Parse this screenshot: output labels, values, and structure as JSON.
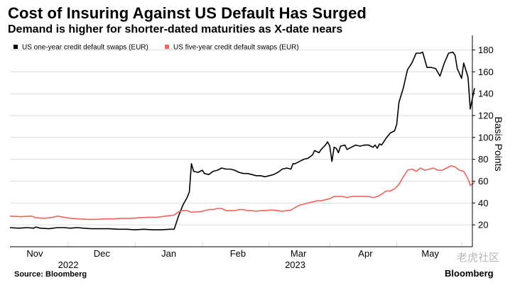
{
  "header": {
    "title": "Cost of Insuring Against US Default Has Surged",
    "subtitle": "Demand is higher for shorter-dated maturities as X-date nears"
  },
  "footer": {
    "source": "Source: Bloomberg",
    "brand": "Bloomberg",
    "watermark": "老虎社区"
  },
  "colors": {
    "series_one_year": "#000000",
    "series_five_year": "#f0645a",
    "grid": "#dcdcdc",
    "axis": "#000000"
  },
  "chart_data": {
    "type": "line",
    "title": "Cost of Insuring Against US Default Has Surged",
    "subtitle": "Demand is higher for shorter-dated maturities as X-date nears",
    "ylabel": "Basis Points",
    "xlabel": "",
    "ylim": [
      0,
      190
    ],
    "yticks": [
      20,
      40,
      60,
      80,
      100,
      120,
      140,
      160,
      180
    ],
    "y_axis_side": "right",
    "grid": true,
    "legend": "top-left",
    "x_domain_days": [
      0,
      214
    ],
    "x_axis_origin": "2022-10-20",
    "month_ticks": [
      {
        "label": "Nov",
        "day": 11.5
      },
      {
        "label": "Dec",
        "day": 42.5
      },
      {
        "label": "Jan",
        "day": 73.5
      },
      {
        "label": "Feb",
        "day": 105.5
      },
      {
        "label": "Mar",
        "day": 133.5
      },
      {
        "label": "Apr",
        "day": 164.5
      },
      {
        "label": "May",
        "day": 194.5
      }
    ],
    "month_separators_day": [
      27,
      58,
      89,
      120,
      148,
      179,
      209
    ],
    "year_labels": [
      {
        "label": "2022",
        "day": 27
      },
      {
        "label": "2023",
        "day": 132
      }
    ],
    "series": [
      {
        "name": "US one-year credit default swaps (EUR)",
        "color": "#000000",
        "points": [
          [
            0,
            17.5
          ],
          [
            4,
            17
          ],
          [
            8,
            17.5
          ],
          [
            11,
            17
          ],
          [
            12,
            18
          ],
          [
            14,
            17
          ],
          [
            18,
            16.5
          ],
          [
            22,
            17.5
          ],
          [
            25,
            17.5
          ],
          [
            28,
            17
          ],
          [
            31,
            17.5
          ],
          [
            34,
            17
          ],
          [
            38,
            16.5
          ],
          [
            42,
            16.5
          ],
          [
            46,
            16.5
          ],
          [
            50,
            16
          ],
          [
            54,
            16
          ],
          [
            58,
            15.5
          ],
          [
            62,
            16
          ],
          [
            66,
            15.5
          ],
          [
            70,
            15.5
          ],
          [
            74,
            16
          ],
          [
            76,
            16
          ],
          [
            78,
            28
          ],
          [
            80,
            38
          ],
          [
            82,
            45
          ],
          [
            83,
            50
          ],
          [
            84,
            76
          ],
          [
            85,
            69
          ],
          [
            87,
            68
          ],
          [
            89,
            70
          ],
          [
            90,
            67
          ],
          [
            92,
            66
          ],
          [
            94,
            69
          ],
          [
            96,
            70
          ],
          [
            98,
            72
          ],
          [
            100,
            71
          ],
          [
            102,
            71
          ],
          [
            104,
            70
          ],
          [
            106,
            68
          ],
          [
            108,
            67
          ],
          [
            110,
            67
          ],
          [
            112,
            66
          ],
          [
            114,
            65
          ],
          [
            116,
            65
          ],
          [
            118,
            64
          ],
          [
            120,
            65
          ],
          [
            122,
            66
          ],
          [
            124,
            68
          ],
          [
            126,
            71
          ],
          [
            128,
            72
          ],
          [
            130,
            71
          ],
          [
            131,
            76
          ],
          [
            132,
            76
          ],
          [
            134,
            78
          ],
          [
            136,
            80
          ],
          [
            138,
            81
          ],
          [
            140,
            84
          ],
          [
            141,
            88
          ],
          [
            143,
            86
          ],
          [
            144,
            89
          ],
          [
            146,
            93
          ],
          [
            147,
            96
          ],
          [
            148,
            92
          ],
          [
            149,
            78
          ],
          [
            150,
            91
          ],
          [
            151,
            90
          ],
          [
            152,
            86
          ],
          [
            153,
            92
          ],
          [
            155,
            93
          ],
          [
            156,
            89
          ],
          [
            158,
            91
          ],
          [
            160,
            93
          ],
          [
            162,
            92
          ],
          [
            164,
            93
          ],
          [
            166,
            93
          ],
          [
            168,
            91
          ],
          [
            169,
            93
          ],
          [
            170,
            90
          ],
          [
            171,
            94
          ],
          [
            172,
            93
          ],
          [
            174,
            99
          ],
          [
            176,
            104
          ],
          [
            178,
            106
          ],
          [
            179,
            112
          ],
          [
            180,
            132
          ],
          [
            182,
            145
          ],
          [
            184,
            162
          ],
          [
            186,
            168
          ],
          [
            188,
            177
          ],
          [
            190,
            177
          ],
          [
            191,
            178
          ],
          [
            193,
            164
          ],
          [
            195,
            164
          ],
          [
            197,
            163
          ],
          [
            199,
            156
          ],
          [
            201,
            168
          ],
          [
            203,
            177
          ],
          [
            205,
            178
          ],
          [
            206,
            175
          ],
          [
            207,
            163
          ],
          [
            209,
            154
          ],
          [
            210,
            168
          ],
          [
            212,
            155
          ],
          [
            213,
            126
          ],
          [
            215,
            145
          ]
        ]
      },
      {
        "name": "US five-year credit default swaps (EUR)",
        "color": "#f0645a",
        "points": [
          [
            0,
            28
          ],
          [
            5,
            27.5
          ],
          [
            10,
            28
          ],
          [
            12,
            26.5
          ],
          [
            16,
            26
          ],
          [
            20,
            27
          ],
          [
            22,
            28
          ],
          [
            25,
            27
          ],
          [
            28,
            26
          ],
          [
            32,
            25.5
          ],
          [
            36,
            25
          ],
          [
            40,
            25
          ],
          [
            44,
            25.5
          ],
          [
            48,
            25.5
          ],
          [
            52,
            26
          ],
          [
            56,
            26
          ],
          [
            60,
            26.5
          ],
          [
            64,
            27
          ],
          [
            68,
            27
          ],
          [
            72,
            28
          ],
          [
            76,
            29
          ],
          [
            78,
            32
          ],
          [
            80,
            33
          ],
          [
            82,
            33
          ],
          [
            84,
            31.5
          ],
          [
            86,
            32
          ],
          [
            88,
            32
          ],
          [
            90,
            33
          ],
          [
            92,
            34
          ],
          [
            94,
            34
          ],
          [
            96,
            35
          ],
          [
            98,
            35
          ],
          [
            100,
            33
          ],
          [
            102,
            33
          ],
          [
            104,
            33
          ],
          [
            106,
            34
          ],
          [
            108,
            34
          ],
          [
            110,
            33
          ],
          [
            112,
            33
          ],
          [
            114,
            32.5
          ],
          [
            116,
            33
          ],
          [
            118,
            33
          ],
          [
            120,
            33.5
          ],
          [
            122,
            33.5
          ],
          [
            124,
            33
          ],
          [
            126,
            32.5
          ],
          [
            128,
            33
          ],
          [
            130,
            33.5
          ],
          [
            132,
            36
          ],
          [
            134,
            38
          ],
          [
            136,
            39
          ],
          [
            138,
            40
          ],
          [
            140,
            41
          ],
          [
            142,
            42
          ],
          [
            144,
            42
          ],
          [
            146,
            43
          ],
          [
            148,
            44
          ],
          [
            150,
            46
          ],
          [
            152,
            46
          ],
          [
            154,
            46
          ],
          [
            156,
            45
          ],
          [
            158,
            46
          ],
          [
            160,
            46
          ],
          [
            162,
            46
          ],
          [
            164,
            46
          ],
          [
            166,
            46
          ],
          [
            168,
            45
          ],
          [
            170,
            46
          ],
          [
            172,
            48
          ],
          [
            174,
            51
          ],
          [
            176,
            51
          ],
          [
            178,
            53
          ],
          [
            180,
            57
          ],
          [
            182,
            64
          ],
          [
            184,
            70
          ],
          [
            186,
            71
          ],
          [
            188,
            69
          ],
          [
            190,
            72
          ],
          [
            192,
            70
          ],
          [
            194,
            71
          ],
          [
            196,
            72
          ],
          [
            198,
            70
          ],
          [
            200,
            70
          ],
          [
            202,
            72
          ],
          [
            204,
            74
          ],
          [
            206,
            73
          ],
          [
            208,
            70
          ],
          [
            210,
            69
          ],
          [
            212,
            62
          ],
          [
            213,
            56
          ],
          [
            215,
            59
          ]
        ]
      }
    ]
  }
}
